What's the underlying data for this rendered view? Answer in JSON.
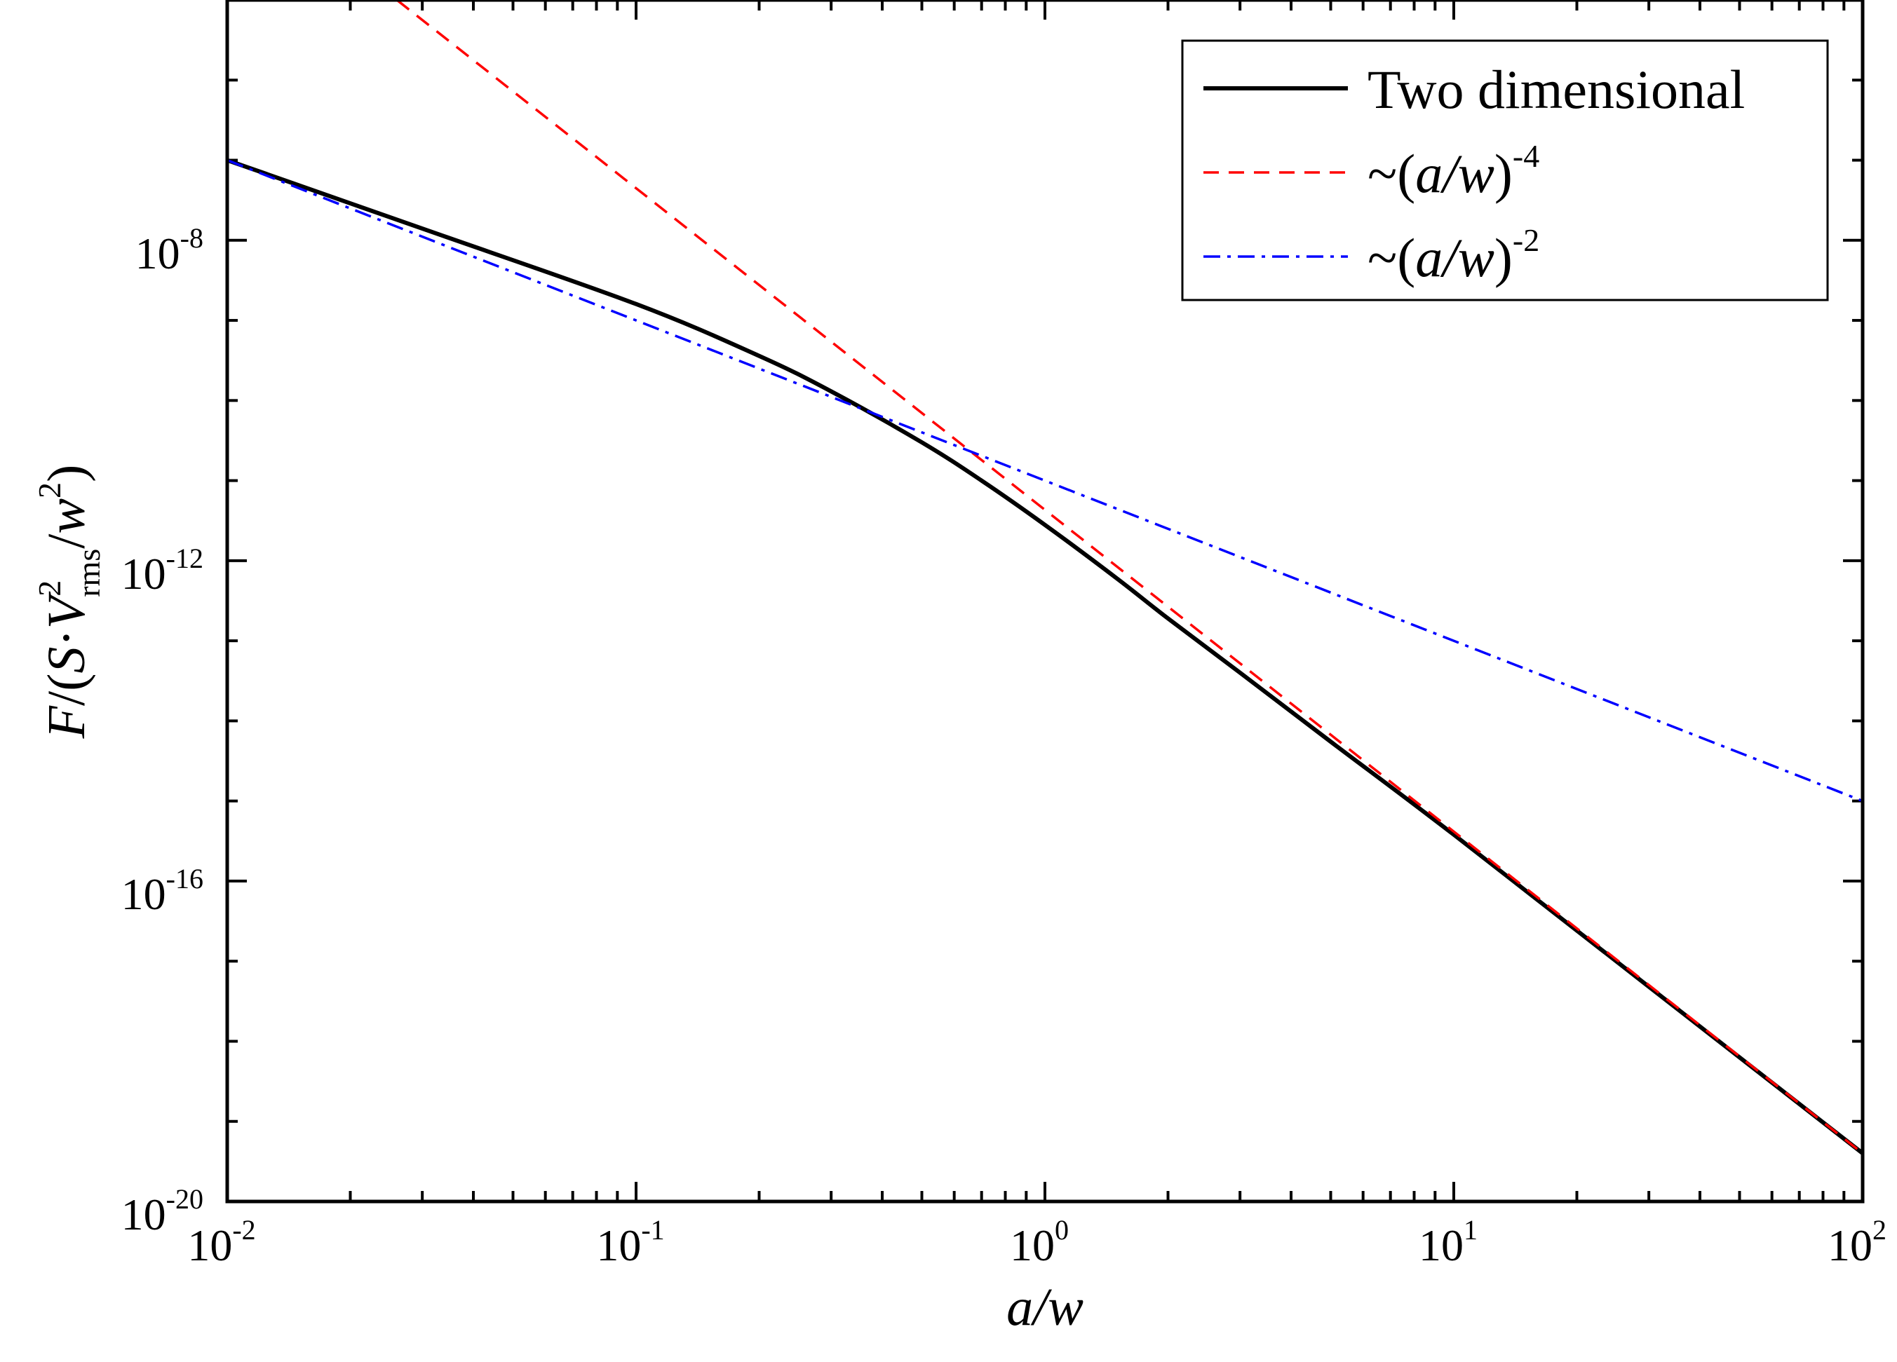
{
  "chart_data": {
    "type": "line",
    "x_scale": "log",
    "y_scale": "log",
    "xlim": [
      0.01,
      100
    ],
    "ylim": [
      1e-20,
      1e-05
    ],
    "xlabel": {
      "text": "a/w",
      "italic": true
    },
    "ylabel": {
      "parts": [
        {
          "text": "F",
          "italic": true
        },
        {
          "text": "/(",
          "italic": false
        },
        {
          "text": "S",
          "italic": true
        },
        {
          "text": "·",
          "italic": false
        },
        {
          "text": "V",
          "italic": true
        }
      ],
      "v_sup": "2",
      "v_sub": "rms",
      "tail": [
        {
          "text": "/",
          "italic": false
        },
        {
          "text": "w",
          "italic": true
        }
      ],
      "w_sup": "2",
      "close": ")"
    },
    "x_ticks": [
      {
        "base": "10",
        "exp": "-2",
        "value": 0.01
      },
      {
        "base": "10",
        "exp": "-1",
        "value": 0.1
      },
      {
        "base": "10",
        "exp": "0",
        "value": 1
      },
      {
        "base": "10",
        "exp": "1",
        "value": 10
      },
      {
        "base": "10",
        "exp": "2",
        "value": 100
      }
    ],
    "y_ticks": [
      {
        "base": "10",
        "exp": "-8",
        "value": 1e-08
      },
      {
        "base": "10",
        "exp": "-12",
        "value": 1e-12
      },
      {
        "base": "10",
        "exp": "-16",
        "value": 1e-16
      },
      {
        "base": "10",
        "exp": "-20",
        "value": 1e-20
      }
    ],
    "legend_position": "top-right",
    "series": [
      {
        "name": "Two dimensional",
        "color": "#000000",
        "style": "solid",
        "points": [
          [
            0.01,
            1e-07
          ],
          [
            0.03,
            1.4e-08
          ],
          [
            0.1,
            1.6e-09
          ],
          [
            0.2,
            3.6e-10
          ],
          [
            0.3,
            1.3e-10
          ],
          [
            0.5,
            3e-11
          ],
          [
            0.7,
            1e-11
          ],
          [
            1,
            2.8e-12
          ],
          [
            1.5,
            6e-13
          ],
          [
            2,
            1.9e-13
          ],
          [
            3,
            4e-14
          ],
          [
            5,
            5.5e-15
          ],
          [
            10,
            3.8e-16
          ],
          [
            30,
            4.8e-18
          ],
          [
            100,
            4e-20
          ]
        ]
      },
      {
        "name": "~(a/w)",
        "legend_label": {
          "prefix": "~(",
          "italic": "a/w",
          "suffix": ")",
          "sup": "-4"
        },
        "color": "#ff0000",
        "style": "dashed",
        "points": [
          [
            0.026,
            1e-05
          ],
          [
            100,
            4e-20
          ]
        ]
      },
      {
        "name": "~(a/w)",
        "legend_label": {
          "prefix": "~(",
          "italic": "a/w",
          "suffix": ")",
          "sup": "-2"
        },
        "color": "#0000ff",
        "style": "dashdot",
        "points": [
          [
            0.01,
            1e-07
          ],
          [
            100,
            1e-15
          ]
        ]
      }
    ]
  }
}
